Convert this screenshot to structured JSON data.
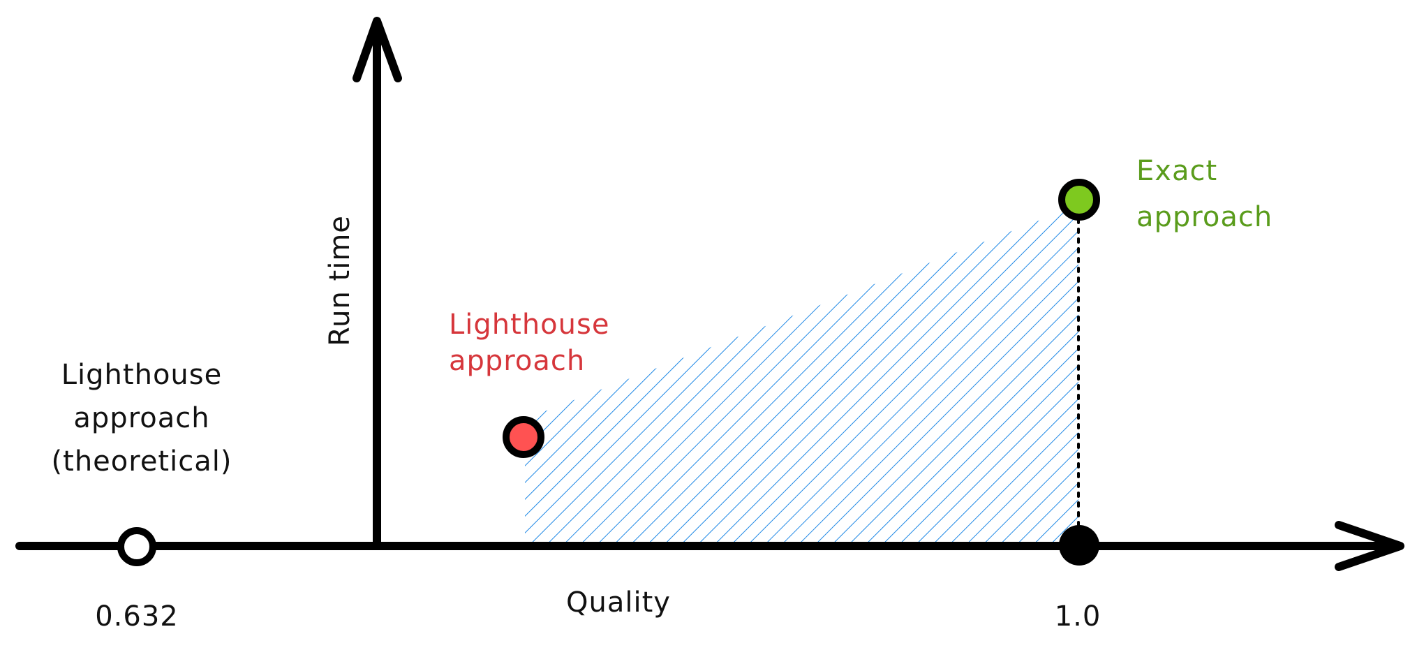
{
  "axes": {
    "x_label": "Quality",
    "y_label": "Run time"
  },
  "ticks": {
    "left": "0.632",
    "right": "1.0"
  },
  "annotations": {
    "theoretical": [
      "Lighthouse",
      "approach",
      "(theoretical)"
    ],
    "lighthouse": [
      "Lighthouse",
      "approach"
    ],
    "exact": [
      "Exact",
      "approach"
    ]
  },
  "colors": {
    "axis": "#000000",
    "hatch": "#1e88e5",
    "lighthouse_point": "#ff5252",
    "exact_point": "#7ec91f",
    "lighthouse_text": "#d6363b",
    "exact_text": "#5a9c1c",
    "theoretical_point": "#ffffff"
  }
}
